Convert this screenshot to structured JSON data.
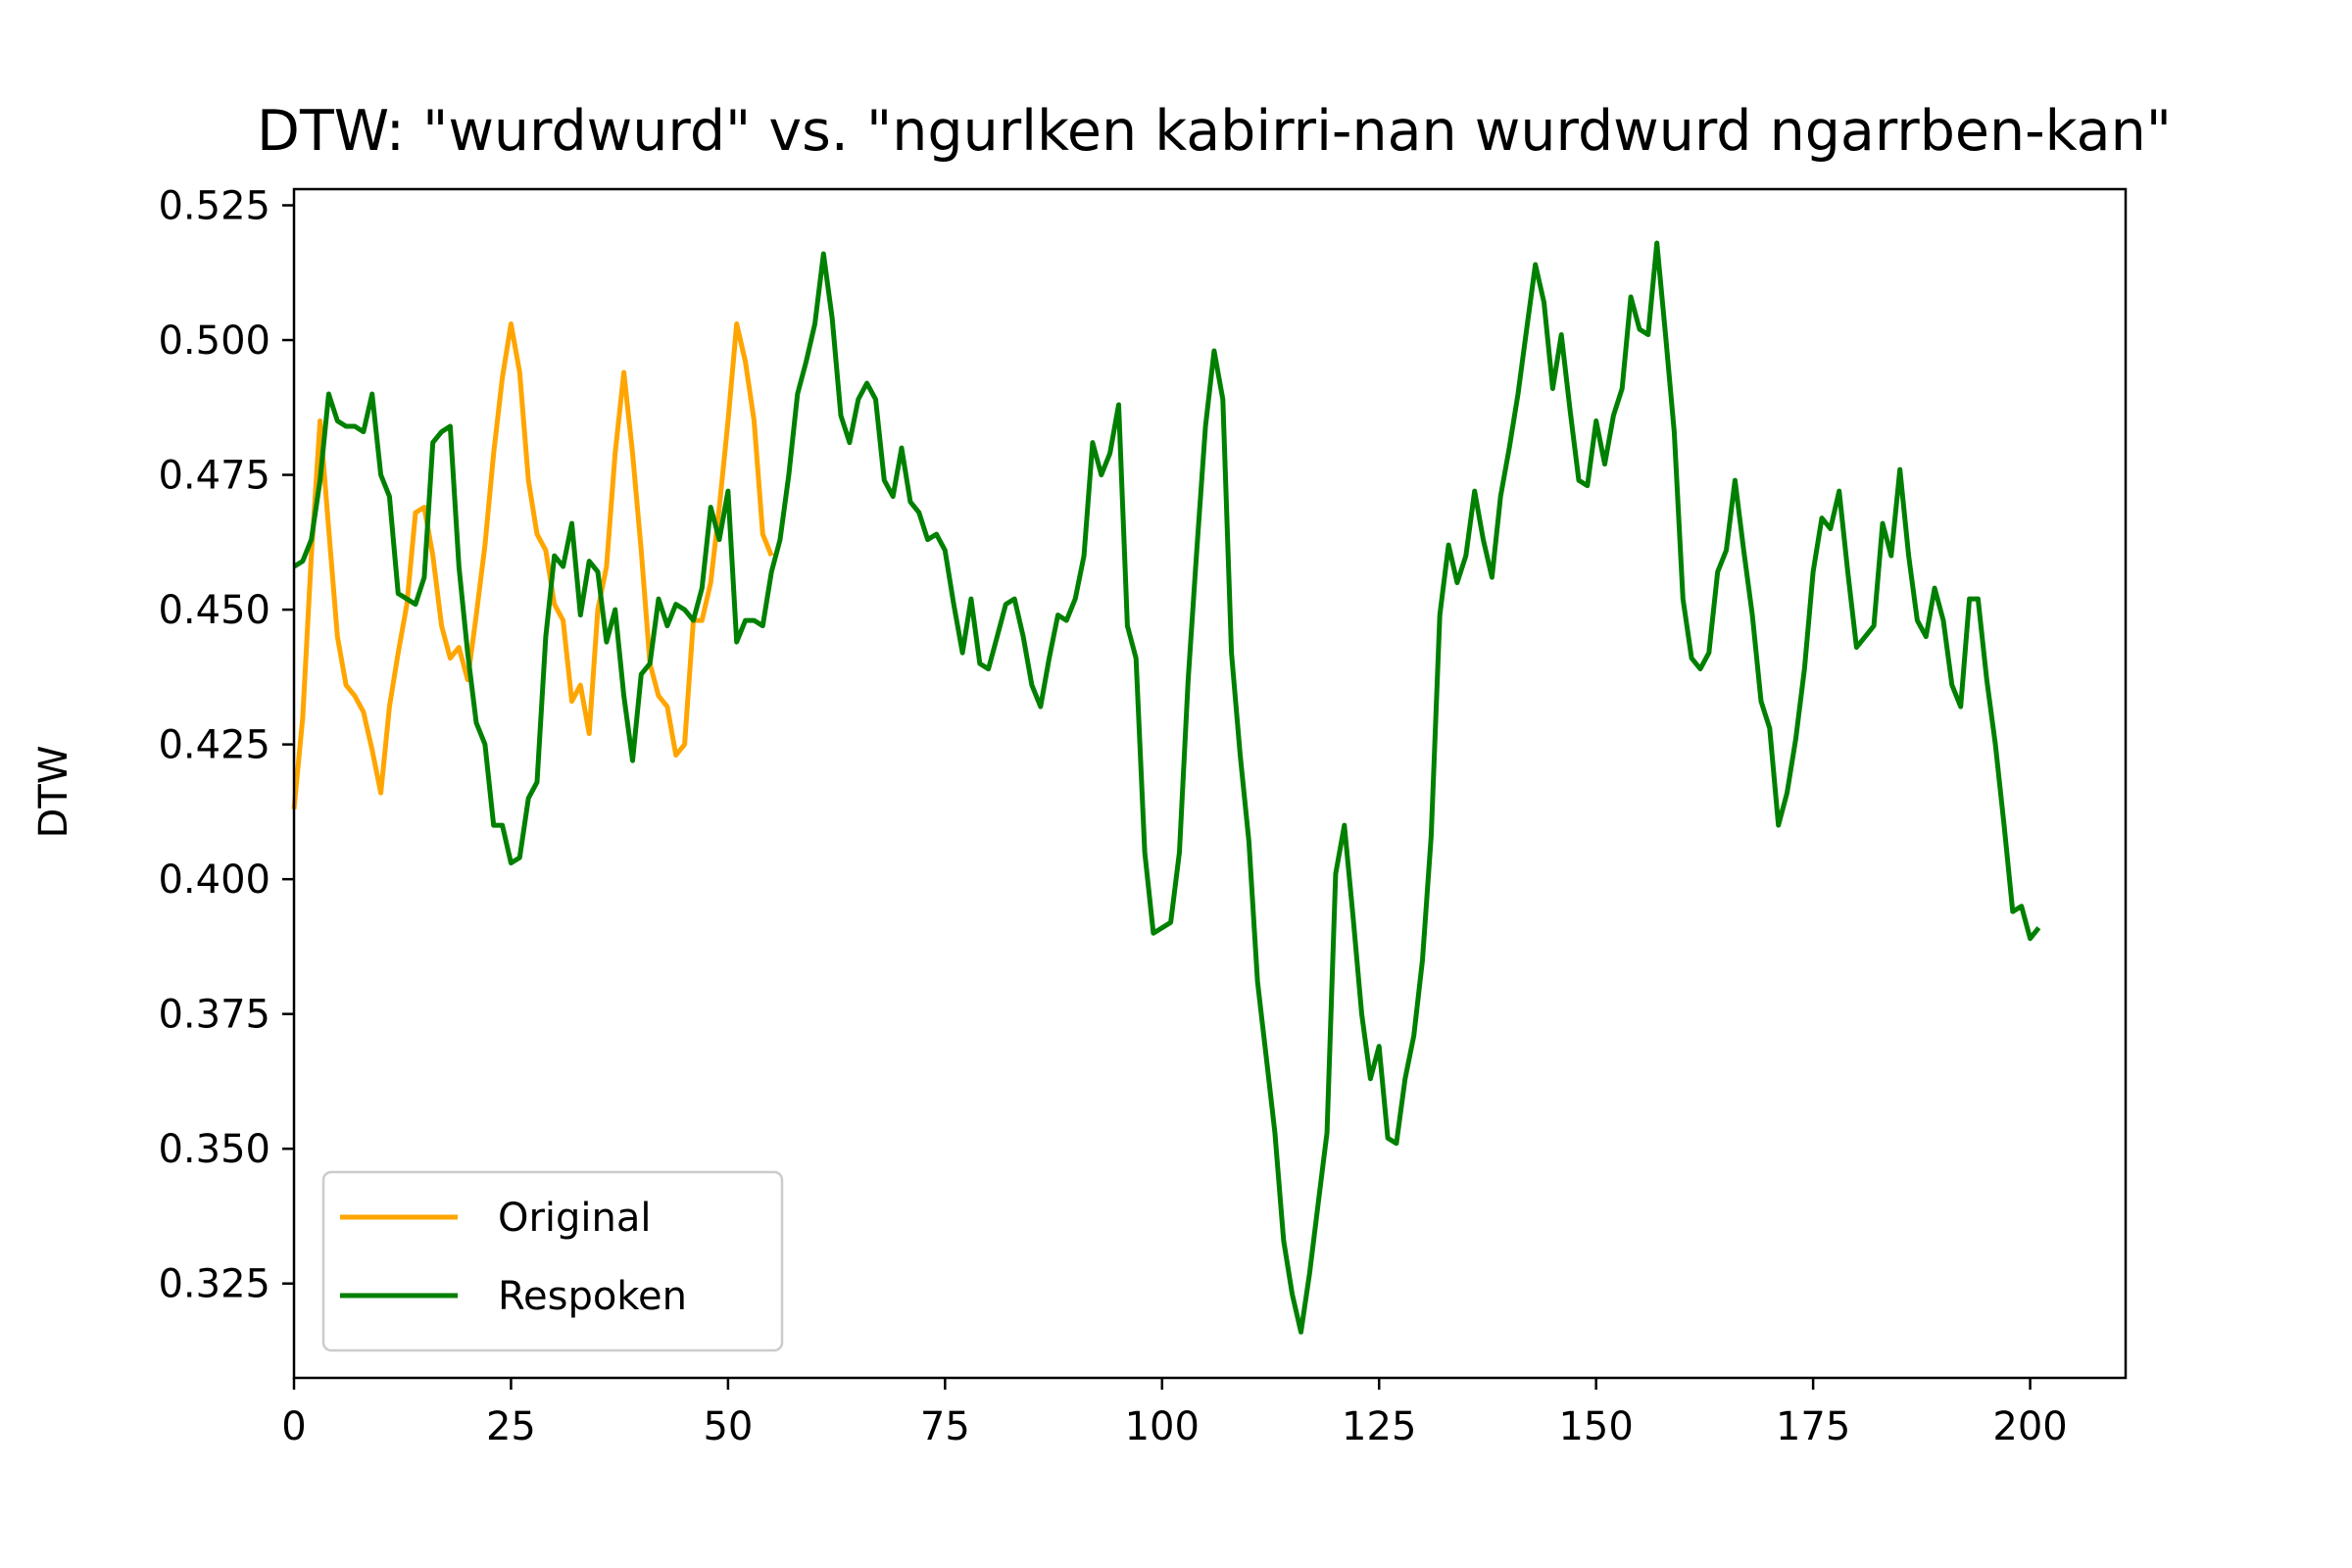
{
  "chart_data": {
    "type": "line",
    "title": "DTW: \"wurdwurd\" vs. \"ngurlken kabirri-nan wurdwurd ngarrben-kan\"",
    "xlabel": "",
    "ylabel": "DTW",
    "xlim": [
      0,
      211
    ],
    "ylim": [
      0.3075,
      0.528
    ],
    "xticks": [
      0,
      25,
      50,
      75,
      100,
      125,
      150,
      175,
      200
    ],
    "xtick_labels": [
      "0",
      "25",
      "50",
      "75",
      "100",
      "125",
      "150",
      "175",
      "200"
    ],
    "yticks": [
      0.325,
      0.35,
      0.375,
      0.4,
      0.425,
      0.45,
      0.475,
      0.5,
      0.525
    ],
    "ytick_labels": [
      "0.325",
      "0.350",
      "0.375",
      "0.400",
      "0.425",
      "0.450",
      "0.475",
      "0.500",
      "0.525"
    ],
    "grid": false,
    "legend_placement": "lower-left",
    "series": [
      {
        "name": "Original",
        "color": "#FFA500",
        "x": [
          0,
          1,
          2,
          3,
          4,
          5,
          6,
          7,
          8,
          9,
          10,
          11,
          12,
          13,
          14,
          15,
          16,
          17,
          18,
          19,
          20,
          21,
          22,
          23,
          24,
          25,
          26,
          27,
          28,
          29,
          30,
          31,
          32,
          33,
          34,
          35,
          36,
          37,
          38,
          39,
          40,
          41,
          42,
          43,
          44,
          45,
          46,
          47,
          48,
          49,
          50,
          51,
          52,
          53,
          54,
          55
        ],
        "y": [
          0.413,
          0.43,
          0.46,
          0.485,
          0.465,
          0.445,
          0.436,
          0.434,
          0.431,
          0.424,
          0.416,
          0.432,
          0.442,
          0.451,
          0.468,
          0.469,
          0.46,
          0.447,
          0.441,
          0.443,
          0.437,
          0.449,
          0.462,
          0.479,
          0.493,
          0.503,
          0.494,
          0.474,
          0.464,
          0.461,
          0.451,
          0.448,
          0.433,
          0.436,
          0.427,
          0.45,
          0.458,
          0.479,
          0.494,
          0.479,
          0.461,
          0.44,
          0.434,
          0.432,
          0.423,
          0.425,
          0.448,
          0.448,
          0.455,
          0.469,
          0.485,
          0.503,
          0.496,
          0.485,
          0.464,
          0.46
        ]
      },
      {
        "name": "Respoken",
        "color": "#008000",
        "x": [
          0,
          1,
          2,
          3,
          4,
          5,
          6,
          7,
          8,
          9,
          10,
          11,
          12,
          13,
          14,
          15,
          16,
          17,
          18,
          19,
          20,
          21,
          22,
          23,
          24,
          25,
          26,
          27,
          28,
          29,
          30,
          31,
          32,
          33,
          34,
          35,
          36,
          37,
          38,
          39,
          40,
          41,
          42,
          43,
          44,
          45,
          46,
          47,
          48,
          49,
          50,
          51,
          52,
          53,
          54,
          55,
          56,
          57,
          58,
          59,
          60,
          61,
          62,
          63,
          64,
          65,
          66,
          67,
          68,
          69,
          70,
          71,
          72,
          73,
          74,
          75,
          76,
          77,
          78,
          79,
          80,
          81,
          82,
          83,
          84,
          85,
          86,
          87,
          88,
          89,
          90,
          91,
          92,
          93,
          94,
          95,
          96,
          97,
          98,
          99,
          100,
          101,
          102,
          103,
          104,
          105,
          106,
          107,
          108,
          109,
          110,
          111,
          112,
          113,
          114,
          115,
          116,
          117,
          118,
          119,
          120,
          121,
          122,
          123,
          124,
          125,
          126,
          127,
          128,
          129,
          130,
          131,
          132,
          133,
          134,
          135,
          136,
          137,
          138,
          139,
          140,
          141,
          142,
          143,
          144,
          145,
          146,
          147,
          148,
          149,
          150,
          151,
          152,
          153,
          154,
          155,
          156,
          157,
          158,
          159,
          160,
          161,
          162,
          163,
          164,
          165,
          166,
          167,
          168,
          169,
          170,
          171,
          172,
          173,
          174,
          175,
          176,
          177,
          178,
          179,
          180,
          181,
          182,
          183,
          184,
          185,
          186,
          187,
          188,
          189,
          190,
          191,
          192,
          193,
          194,
          195,
          196,
          197,
          198,
          199,
          200,
          201
        ],
        "y": [
          0.458,
          0.459,
          0.463,
          0.474,
          0.49,
          0.485,
          0.484,
          0.484,
          0.483,
          0.49,
          0.475,
          0.471,
          0.453,
          0.452,
          0.451,
          0.456,
          0.481,
          0.483,
          0.484,
          0.458,
          0.442,
          0.429,
          0.425,
          0.41,
          0.41,
          0.403,
          0.404,
          0.415,
          0.418,
          0.445,
          0.46,
          0.458,
          0.466,
          0.449,
          0.459,
          0.457,
          0.444,
          0.45,
          0.434,
          0.422,
          0.438,
          0.44,
          0.452,
          0.447,
          0.451,
          0.45,
          0.448,
          0.454,
          0.469,
          0.463,
          0.472,
          0.444,
          0.448,
          0.448,
          0.447,
          0.457,
          0.463,
          0.475,
          0.49,
          0.496,
          0.503,
          0.516,
          0.504,
          0.486,
          0.481,
          0.489,
          0.492,
          0.489,
          0.474,
          0.471,
          0.48,
          0.47,
          0.468,
          0.463,
          0.464,
          0.461,
          0.451,
          0.442,
          0.452,
          0.44,
          0.439,
          0.445,
          0.451,
          0.452,
          0.445,
          0.436,
          0.432,
          0.441,
          0.449,
          0.448,
          0.452,
          0.46,
          0.481,
          0.475,
          0.479,
          0.488,
          0.447,
          0.441,
          0.405,
          0.39,
          0.391,
          0.392,
          0.405,
          0.437,
          0.461,
          0.484,
          0.498,
          0.489,
          0.442,
          0.423,
          0.407,
          0.381,
          0.367,
          0.353,
          0.333,
          0.323,
          0.316,
          0.327,
          0.34,
          0.353,
          0.401,
          0.41,
          0.393,
          0.375,
          0.363,
          0.369,
          0.352,
          0.351,
          0.363,
          0.371,
          0.385,
          0.408,
          0.449,
          0.462,
          0.455,
          0.46,
          0.472,
          0.463,
          0.456,
          0.471,
          0.48,
          0.49,
          0.502,
          0.514,
          0.507,
          0.491,
          0.501,
          0.487,
          0.474,
          0.473,
          0.485,
          0.477,
          0.486,
          0.491,
          0.508,
          0.502,
          0.501,
          0.518,
          0.501,
          0.483,
          0.452,
          0.441,
          0.439,
          0.442,
          0.457,
          0.461,
          0.474,
          0.461,
          0.449,
          0.433,
          0.428,
          0.41,
          0.416,
          0.426,
          0.439,
          0.457,
          0.467,
          0.465,
          0.472,
          0.457,
          0.443,
          0.445,
          0.447,
          0.466,
          0.46,
          0.476,
          0.46,
          0.448,
          0.445,
          0.454,
          0.448,
          0.436,
          0.432,
          0.452,
          0.452,
          0.437,
          0.425,
          0.41,
          0.394,
          0.395,
          0.389,
          0.391
        ]
      }
    ]
  }
}
